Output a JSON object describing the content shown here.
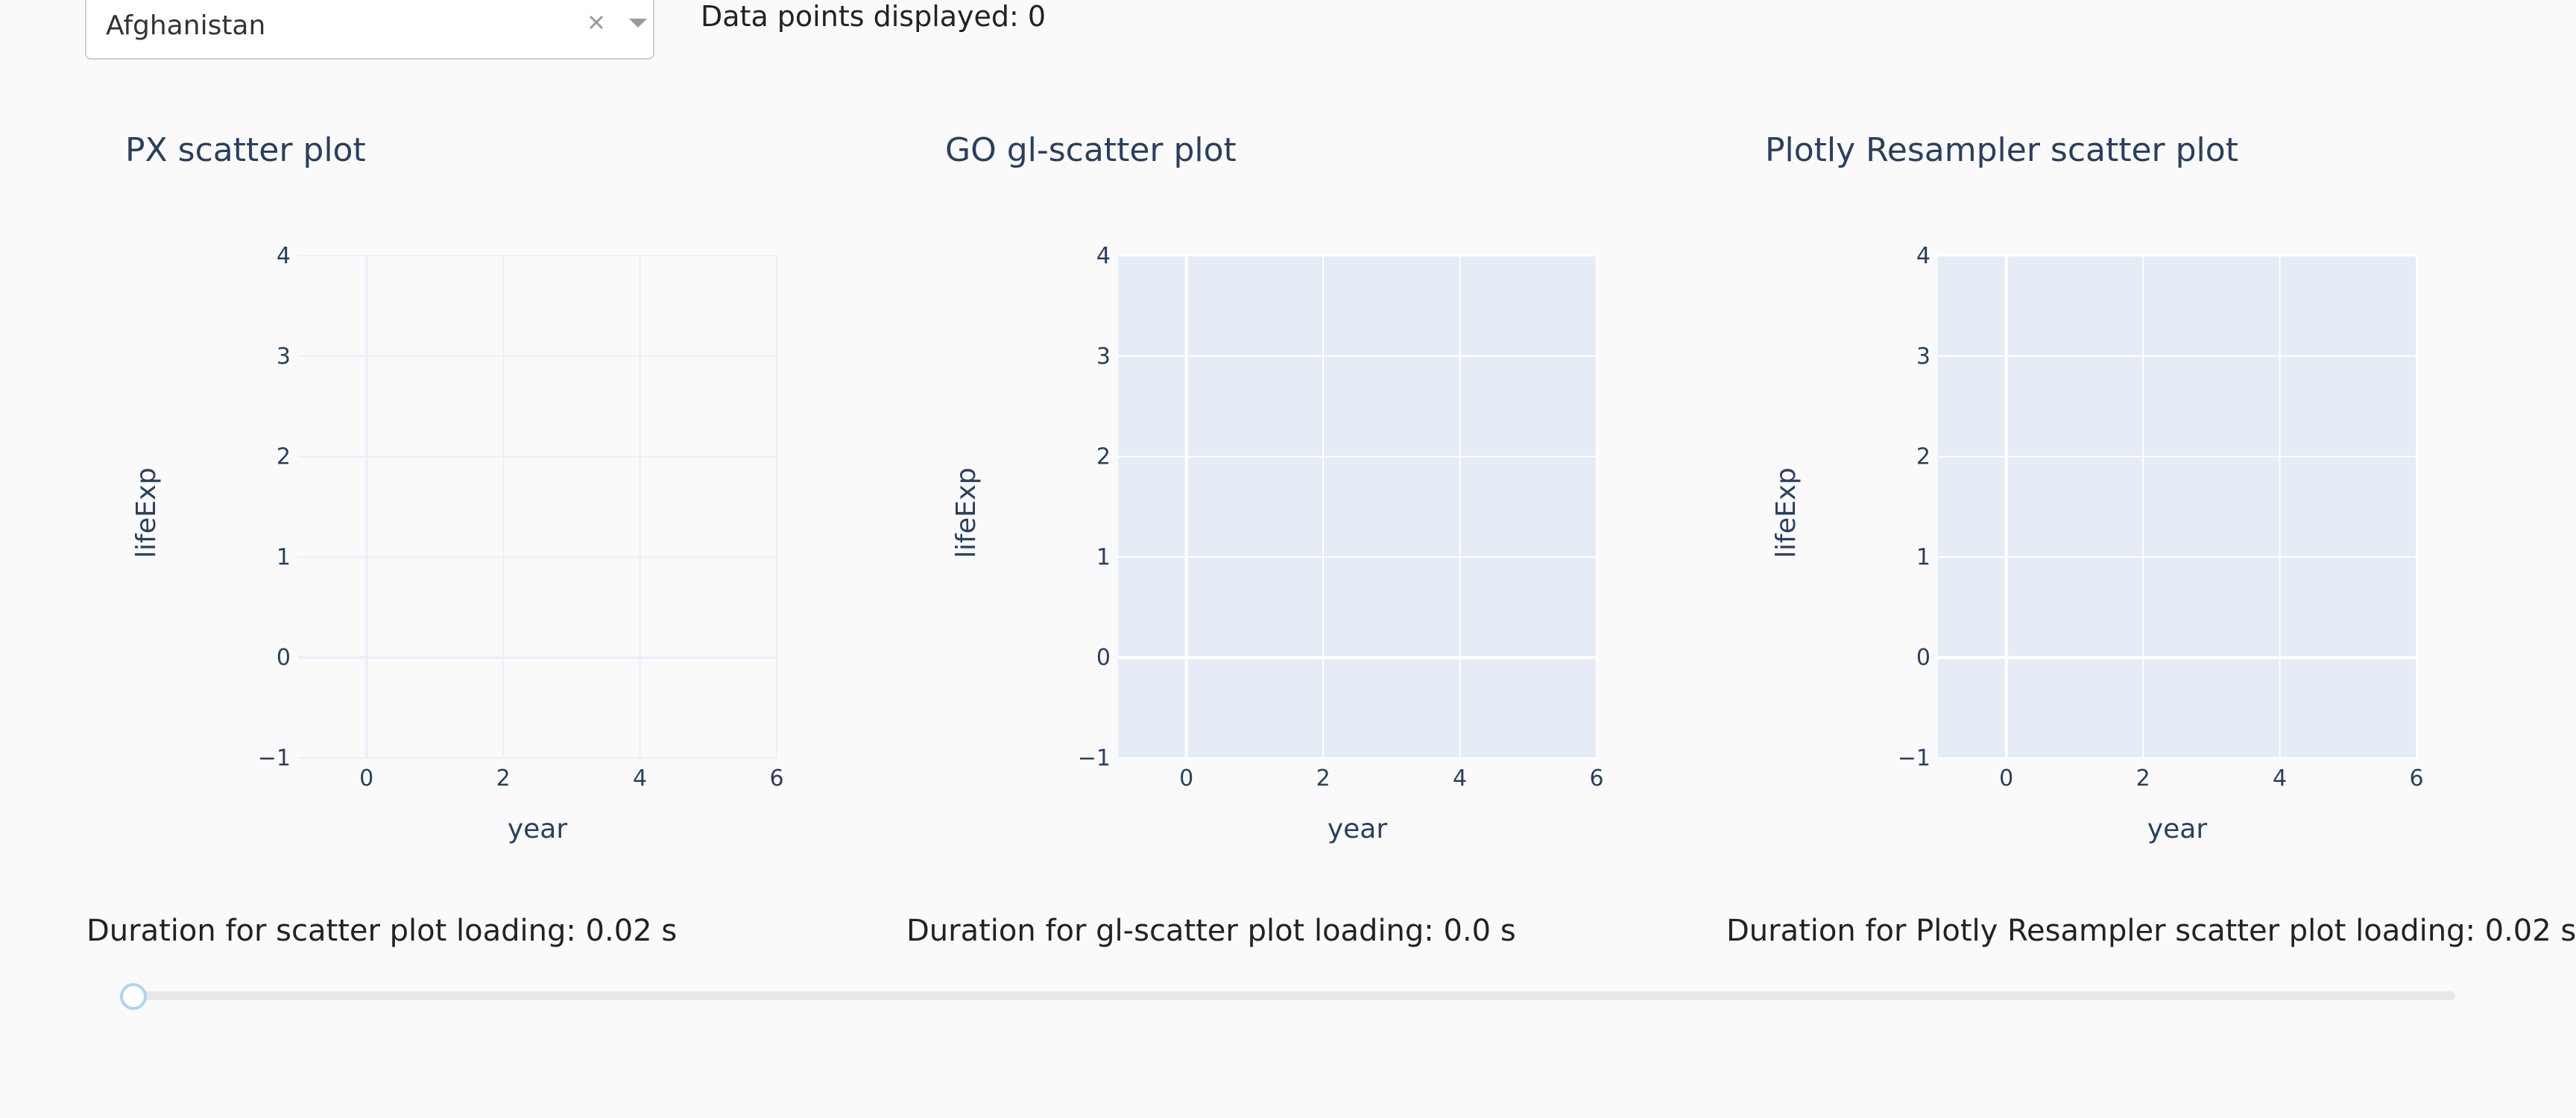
{
  "dropdown": {
    "selected": "Afghanistan",
    "clear_icon": "close-icon",
    "caret_icon": "chevron-down-icon"
  },
  "data_points_text": "Data points displayed: 0",
  "colors": {
    "plotly_bg": "#e5ecf6",
    "grid_on_bg": "#ffffff",
    "grid_on_white": "#ebf0f8",
    "axis_text": "#2a3f5f",
    "slider_handle_border": "#a9d6ef"
  },
  "chart_data": [
    {
      "type": "scatter",
      "title": "PX scatter plot",
      "xlabel": "year",
      "ylabel": "lifeExp",
      "xlim": [
        -1,
        6
      ],
      "ylim": [
        -1,
        4
      ],
      "xticks": [
        "0",
        "2",
        "4",
        "6"
      ],
      "yticks": [
        "−1",
        "0",
        "1",
        "2",
        "3",
        "4"
      ],
      "series": [
        {
          "x": [],
          "y": []
        }
      ],
      "grid": true,
      "plot_background": "white"
    },
    {
      "type": "scatter",
      "title": "GO gl-scatter plot",
      "xlabel": "year",
      "ylabel": "lifeExp",
      "xlim": [
        -1,
        6
      ],
      "ylim": [
        -1,
        4
      ],
      "xticks": [
        "0",
        "2",
        "4",
        "6"
      ],
      "yticks": [
        "−1",
        "0",
        "1",
        "2",
        "3",
        "4"
      ],
      "series": [
        {
          "x": [],
          "y": []
        }
      ],
      "grid": true,
      "plot_background": "plotly"
    },
    {
      "type": "scatter",
      "title": "Plotly Resampler scatter plot",
      "xlabel": "year",
      "ylabel": "lifeExp",
      "xlim": [
        -1,
        6
      ],
      "ylim": [
        -1,
        4
      ],
      "xticks": [
        "0",
        "2",
        "4",
        "6"
      ],
      "yticks": [
        "−1",
        "0",
        "1",
        "2",
        "3",
        "4"
      ],
      "series": [
        {
          "x": [],
          "y": []
        }
      ],
      "grid": true,
      "plot_background": "plotly"
    }
  ],
  "durations": [
    "Duration for scatter plot loading: 0.02 s",
    "Duration for gl-scatter plot loading: 0.0 s",
    "Duration for Plotly Resampler scatter plot loading: 0.02 s"
  ],
  "slider": {
    "value": 0
  }
}
